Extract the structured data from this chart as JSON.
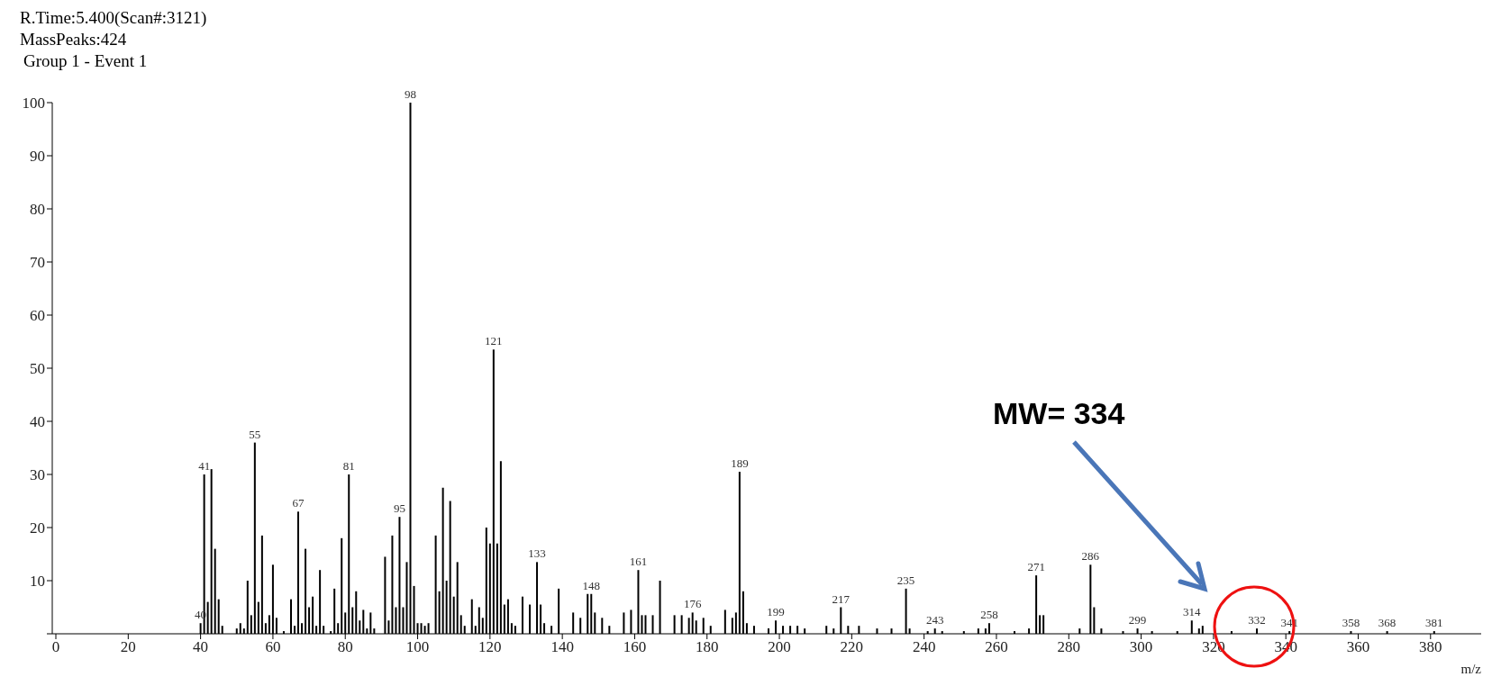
{
  "chart_data": {
    "type": "bar",
    "title": "R.Time:5.400(Scan#:3121)",
    "subtitle": "MassPeaks:424",
    "xlabel": "m/z",
    "annotations": [
      "Group 1 - Event 1",
      "MW= 334",
      {
        "text": "40",
        "x": 40,
        "y": 2
      },
      {
        "text": "41",
        "x": 41,
        "y": 30
      },
      {
        "text": "55",
        "x": 55,
        "y": 36
      },
      {
        "text": "67",
        "x": 67,
        "y": 23
      },
      {
        "text": "81",
        "x": 81,
        "y": 30
      },
      {
        "text": "95",
        "x": 95,
        "y": 22
      },
      {
        "text": "98",
        "x": 98,
        "y": 100
      },
      {
        "text": "121",
        "x": 121,
        "y": 53.5
      },
      {
        "text": "133",
        "x": 133,
        "y": 13.5
      },
      {
        "text": "148",
        "x": 148,
        "y": 7.5
      },
      {
        "text": "161",
        "x": 161,
        "y": 12
      },
      {
        "text": "176",
        "x": 176,
        "y": 4
      },
      {
        "text": "189",
        "x": 189,
        "y": 30.5
      },
      {
        "text": "199",
        "x": 199,
        "y": 2.5
      },
      {
        "text": "217",
        "x": 217,
        "y": 5
      },
      {
        "text": "235",
        "x": 235,
        "y": 8.5
      },
      {
        "text": "243",
        "x": 243,
        "y": 1
      },
      {
        "text": "258",
        "x": 258,
        "y": 2
      },
      {
        "text": "271",
        "x": 271,
        "y": 11
      },
      {
        "text": "286",
        "x": 286,
        "y": 13
      },
      {
        "text": "299",
        "x": 299,
        "y": 1
      },
      {
        "text": "314",
        "x": 314,
        "y": 2.5
      },
      {
        "text": "332",
        "x": 332,
        "y": 1
      },
      {
        "text": "341",
        "x": 341,
        "y": 0.5
      },
      {
        "text": "358",
        "x": 358,
        "y": 0.5
      },
      {
        "text": "368",
        "x": 368,
        "y": 0.5
      },
      {
        "text": "381",
        "x": 381,
        "y": 0.5
      }
    ],
    "x": [
      40,
      41,
      42,
      43,
      44,
      45,
      46,
      50,
      51,
      52,
      53,
      54,
      55,
      56,
      57,
      58,
      59,
      60,
      61,
      63,
      65,
      66,
      67,
      68,
      69,
      70,
      71,
      72,
      73,
      74,
      76,
      77,
      78,
      79,
      80,
      81,
      82,
      83,
      84,
      85,
      86,
      87,
      88,
      91,
      92,
      93,
      94,
      95,
      96,
      97,
      98,
      99,
      100,
      101,
      102,
      103,
      105,
      106,
      107,
      108,
      109,
      110,
      111,
      112,
      113,
      115,
      116,
      117,
      118,
      119,
      120,
      121,
      122,
      123,
      124,
      125,
      126,
      127,
      129,
      131,
      133,
      134,
      135,
      137,
      139,
      143,
      145,
      147,
      148,
      149,
      151,
      153,
      157,
      159,
      161,
      162,
      163,
      165,
      167,
      171,
      173,
      175,
      176,
      177,
      179,
      181,
      185,
      187,
      188,
      189,
      190,
      191,
      193,
      197,
      199,
      201,
      203,
      205,
      207,
      213,
      215,
      217,
      219,
      222,
      227,
      231,
      235,
      236,
      241,
      243,
      245,
      251,
      255,
      257,
      258,
      265,
      269,
      271,
      272,
      273,
      283,
      286,
      287,
      289,
      295,
      299,
      303,
      310,
      314,
      316,
      317,
      325,
      332,
      341,
      358,
      368,
      381
    ],
    "values": [
      2,
      30,
      6,
      31,
      16,
      6.5,
      1.5,
      1,
      2,
      1,
      10,
      3.5,
      36,
      6,
      18.5,
      2,
      3.5,
      13,
      3,
      0.5,
      6.5,
      1.5,
      23,
      2,
      16,
      5,
      7,
      1.5,
      12,
      1.5,
      0.5,
      8.5,
      2,
      18,
      4,
      30,
      5,
      8,
      2.5,
      4.5,
      1,
      4,
      1,
      14.5,
      2.5,
      18.5,
      5,
      22,
      5,
      13.5,
      100,
      9,
      2,
      2,
      1.5,
      2,
      18.5,
      8,
      27.5,
      10,
      25,
      7,
      13.5,
      3.5,
      1.5,
      6.5,
      1.5,
      5,
      3,
      20,
      17,
      53.5,
      17,
      32.5,
      5.5,
      6.5,
      2,
      1.5,
      7,
      5.5,
      13.5,
      5.5,
      2,
      1.5,
      8.5,
      4,
      3,
      7.5,
      7.5,
      4,
      3,
      1.5,
      4,
      4.5,
      12,
      3.5,
      3.5,
      3.5,
      10,
      3.5,
      3.5,
      3,
      4,
      2.5,
      3,
      1.5,
      4.5,
      3,
      4,
      30.5,
      8,
      2,
      1.5,
      1,
      2.5,
      1.5,
      1.5,
      1.5,
      1,
      1.5,
      1,
      5,
      1.5,
      1.5,
      1,
      1,
      8.5,
      1,
      0.5,
      1,
      0.5,
      0.5,
      1,
      1,
      2,
      0.5,
      1,
      11,
      3.5,
      3.5,
      1,
      13,
      5,
      1,
      0.5,
      1,
      0.5,
      0.5,
      2.5,
      1,
      1.5,
      0.5,
      1,
      0.5,
      0.5,
      0.5,
      0.5
    ],
    "color": "#000000",
    "xlim": [
      -1,
      394
    ],
    "xticks": [
      0,
      20,
      40,
      60,
      80,
      100,
      120,
      140,
      160,
      180,
      200,
      220,
      240,
      260,
      280,
      300,
      320,
      340,
      360,
      380
    ],
    "ylim": [
      0,
      100
    ],
    "yticks": [
      {
        "value": 0,
        "label": null
      },
      10,
      20,
      30,
      40,
      50,
      60,
      70,
      80,
      90,
      100
    ],
    "grid": false
  }
}
